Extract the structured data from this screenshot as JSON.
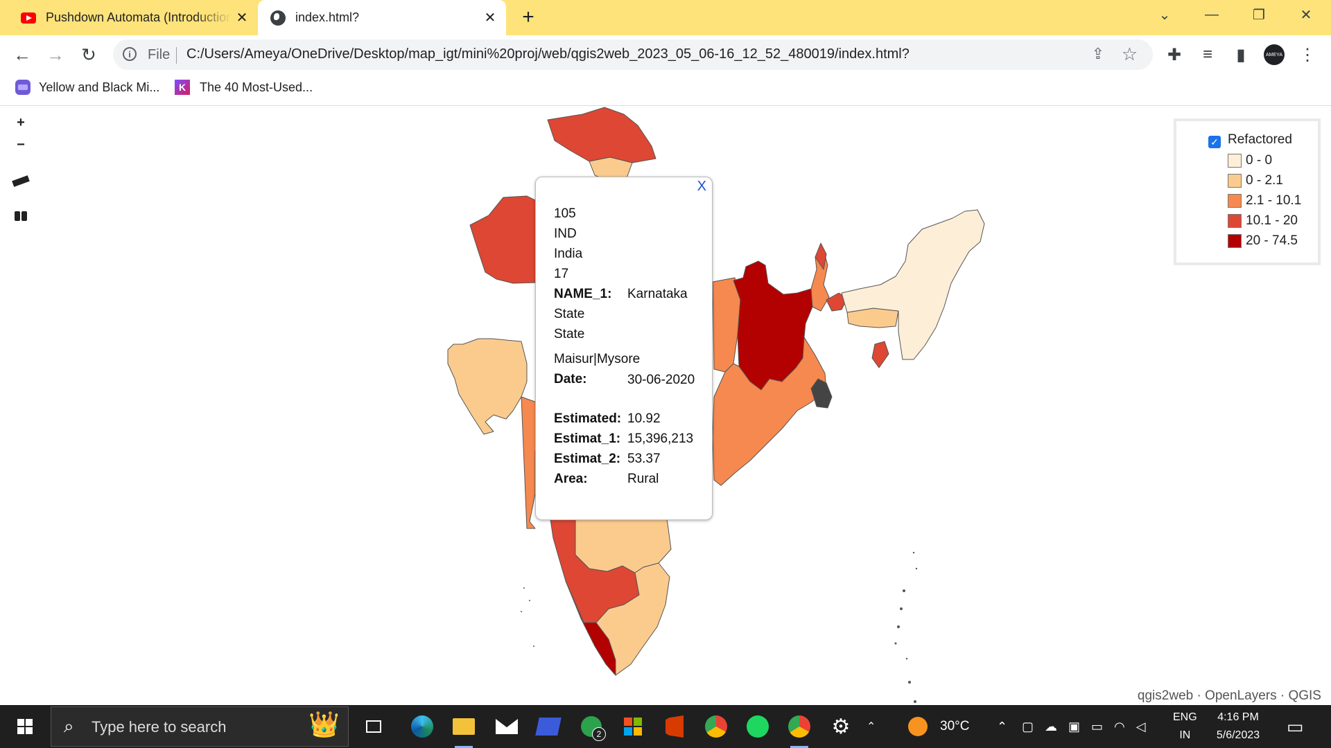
{
  "browser": {
    "tabs": [
      {
        "title": "Pushdown Automata (Introduction"
      },
      {
        "title": "index.html?"
      }
    ],
    "url_scheme": "File",
    "url": "C:/Users/Ameya/OneDrive/Desktop/map_igt/mini%20proj/web/qgis2web_2023_05_06-16_12_52_480019/index.html?",
    "bookmarks": [
      {
        "label": "Yellow and Black Mi..."
      },
      {
        "label": "The 40 Most-Used..."
      }
    ],
    "icons": {
      "back": "←",
      "forward": "→",
      "reload": "↻",
      "new_tab": "+",
      "tab_close": "✕",
      "tab_search": "⌄",
      "minimize": "—",
      "restore": "❐",
      "close": "✕",
      "share": "⇪",
      "star": "☆",
      "extensions": "✚",
      "media": "≡",
      "sidepanel": "▮",
      "menu": "⋮",
      "avatar_text": "AMEYA"
    }
  },
  "map": {
    "controls": {
      "zoom_in": "+",
      "zoom_out": "−",
      "measure": "📏",
      "geocoder": "⌕"
    },
    "legend": {
      "layer_name": "Refactored",
      "checked": true,
      "classes": [
        {
          "label": "0 - 0",
          "color": "#fdeed8"
        },
        {
          "label": "0 - 2.1",
          "color": "#fbcb8e"
        },
        {
          "label": "2.1 - 10.1",
          "color": "#f6894f"
        },
        {
          "label": "10.1 - 20",
          "color": "#dd4733"
        },
        {
          "label": "20 - 74.5",
          "color": "#b30000"
        }
      ]
    },
    "attribution": "qgis2web · OpenLayers · QGIS",
    "popup": {
      "close": "X",
      "plain_values": [
        "105",
        "IND",
        "India",
        "17"
      ],
      "name_1_key": "NAME_1:",
      "name_1_value": "Karnataka",
      "type_1": "State",
      "engtype_1": "State",
      "varname": "Maisur|Mysore",
      "fields": [
        {
          "key": "Date:",
          "value": "30-06-2020"
        },
        {
          "key": "Estimated:",
          "value": "10.92"
        },
        {
          "key": "Estimat_1:",
          "value": "15,396,213"
        },
        {
          "key": "Estimat_2:",
          "value": "53.37"
        },
        {
          "key": "Area:",
          "value": "Rural"
        }
      ]
    }
  },
  "taskbar": {
    "search_placeholder": "Type here to search",
    "weather": "30°C",
    "language": "ENG",
    "region": "IN",
    "time": "4:16 PM",
    "date": "5/6/2023",
    "xbox_badge": "2"
  }
}
